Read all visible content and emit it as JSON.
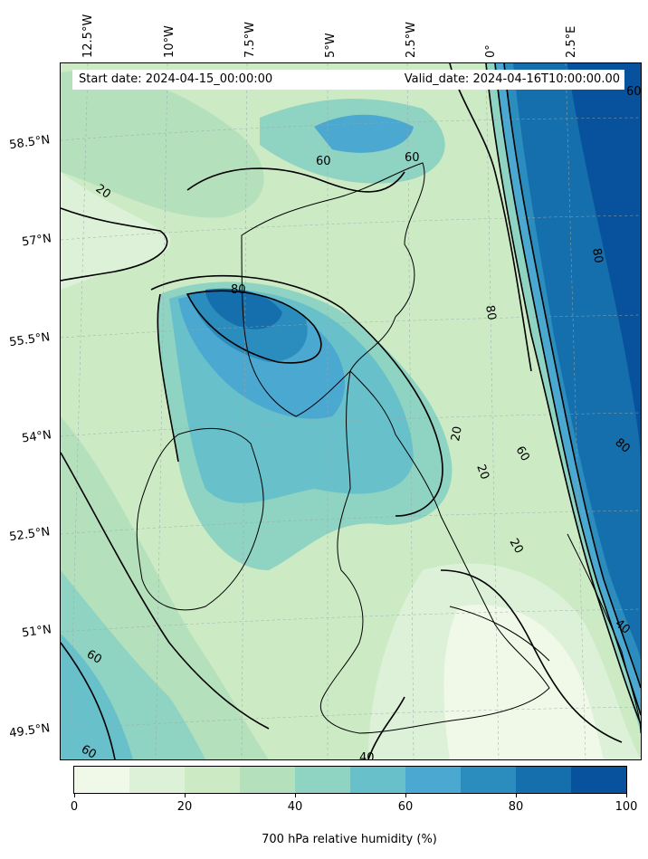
{
  "map": {
    "start_date_text": "Start date: 2024-04-15_00:00:00",
    "valid_date_text": "Valid_date: 2024-04-16T10:00:00.00",
    "longitude_labels": [
      "12.5°W",
      "10°W",
      "7.5°W",
      "5°W",
      "2.5°W",
      "0°",
      "2.5°E"
    ],
    "latitude_labels": [
      "58.5°N",
      "57°N",
      "55.5°N",
      "54°N",
      "52.5°N",
      "51°N",
      "49.5°N"
    ],
    "contour_labels": [
      "20",
      "60",
      "80",
      "80",
      "60",
      "80",
      "40",
      "60",
      "20",
      "60",
      "20",
      "20",
      "80",
      "40",
      "60",
      "60",
      "40"
    ],
    "field": "relative humidity",
    "level": "700 hPa"
  },
  "colorbar": {
    "label": "700 hPa relative humidity (%)",
    "tick_labels": [
      "0",
      "20",
      "40",
      "60",
      "80",
      "100"
    ],
    "range": [
      0,
      100
    ],
    "step": 10,
    "colors": [
      "#f0f9e8",
      "#dcf1d8",
      "#ccebc5",
      "#b5e0bc",
      "#8fd3c2",
      "#67c0ca",
      "#4ba8d0",
      "#2b8cbe",
      "#166fad",
      "#08519c"
    ]
  }
}
